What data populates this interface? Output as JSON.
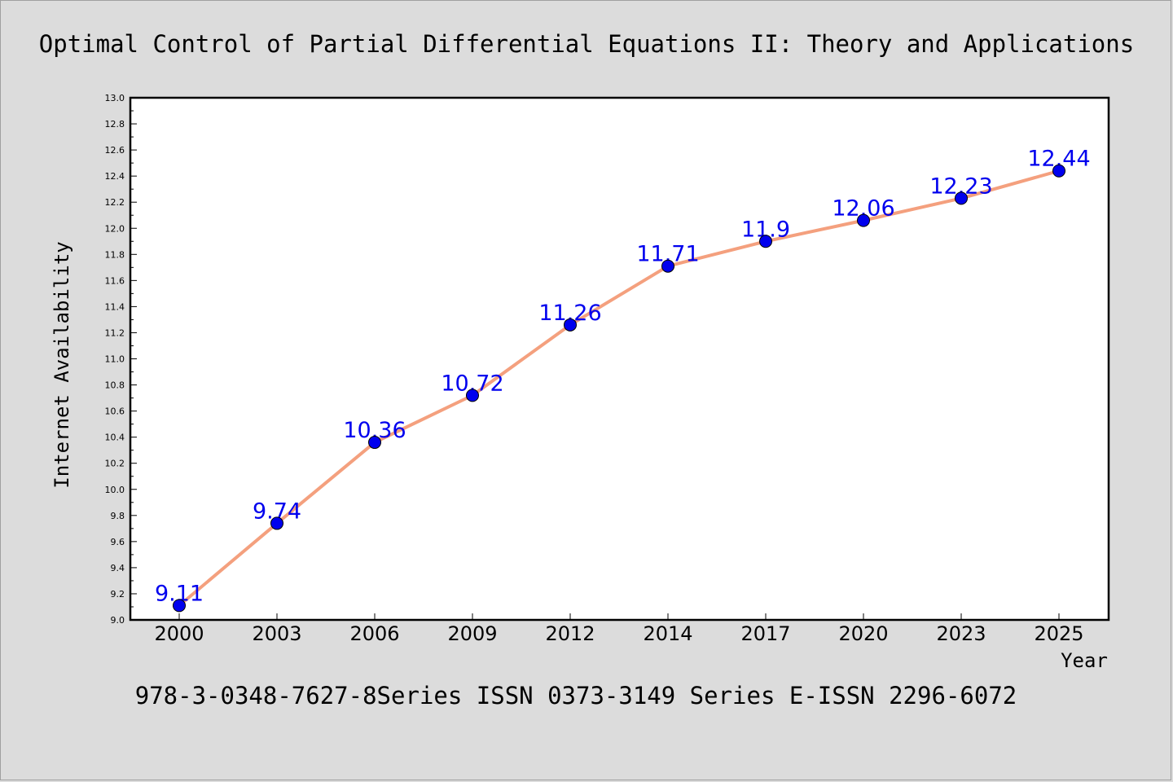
{
  "chart_data": {
    "type": "line",
    "title": "Optimal Control of Partial Differential Equations II: Theory and Applications",
    "caption": "978-3-0348-7627-8Series ISSN 0373-3149 Series E-ISSN 2296-6072",
    "xlabel": "Year",
    "ylabel": "Internet Availability",
    "ylim": [
      9.0,
      13.0
    ],
    "ytick_step": 0.2,
    "categories": [
      "2000",
      "2003",
      "2006",
      "2009",
      "2012",
      "2014",
      "2017",
      "2020",
      "2023",
      "2025"
    ],
    "series": [
      {
        "values": [
          9.11,
          9.74,
          10.36,
          10.72,
          11.26,
          11.71,
          11.9,
          12.06,
          12.23,
          12.44
        ],
        "data_labels": [
          "9.11",
          "9.74",
          "10.36",
          "10.72",
          "11.26",
          "11.71",
          "11.9",
          "12.06",
          "12.23",
          "12.44"
        ],
        "line_color": "#f4a07e",
        "marker_color": "#0000ee",
        "label_color": "#0000ee"
      }
    ],
    "grid": false,
    "legend": "none"
  }
}
